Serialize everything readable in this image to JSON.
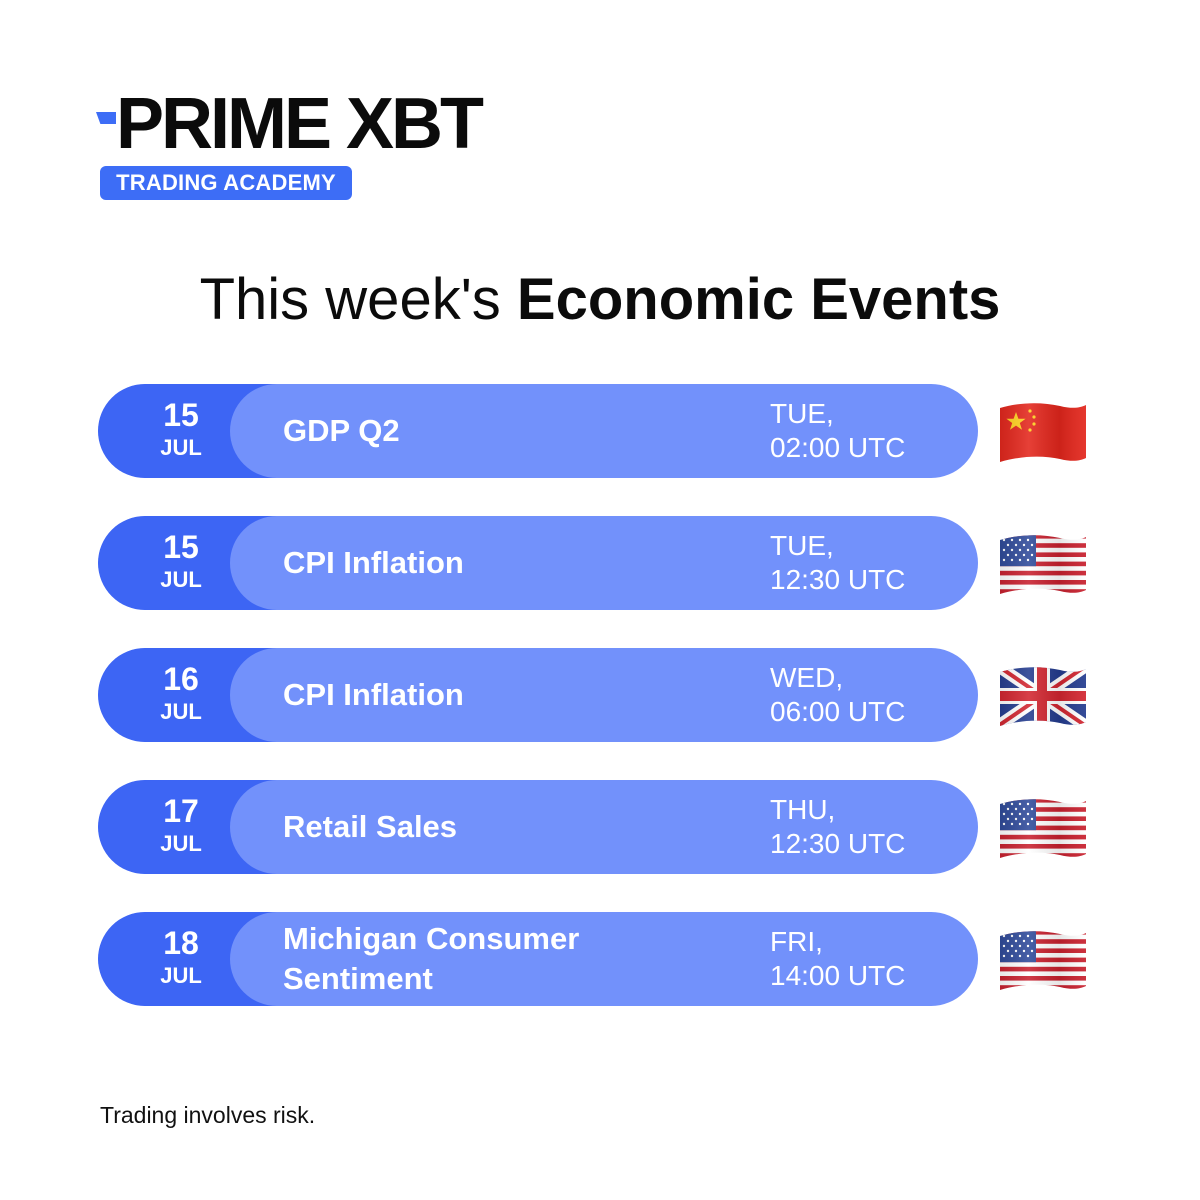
{
  "brand": {
    "name": "PRIME XBT",
    "badge": "TRADING ACADEMY",
    "accent_color": "#3d6df6"
  },
  "heading": {
    "light": "This week's",
    "bold": "Economic Events"
  },
  "events": [
    {
      "day": "15",
      "month": "JUL",
      "name": "GDP Q2",
      "weekday": "TUE,",
      "time": "02:00 UTC",
      "flag": "china-flag-icon"
    },
    {
      "day": "15",
      "month": "JUL",
      "name": "CPI Inflation",
      "weekday": "TUE,",
      "time": "12:30 UTC",
      "flag": "usa-flag-icon"
    },
    {
      "day": "16",
      "month": "JUL",
      "name": "CPI Inflation",
      "weekday": "WED,",
      "time": "06:00 UTC",
      "flag": "uk-flag-icon"
    },
    {
      "day": "17",
      "month": "JUL",
      "name": "Retail Sales",
      "weekday": "THU,",
      "time": "12:30 UTC",
      "flag": "usa-flag-icon"
    },
    {
      "day": "18",
      "month": "JUL",
      "name": "Michigan Consumer Sentiment",
      "weekday": "FRI,",
      "time": "14:00 UTC",
      "flag": "usa-flag-icon"
    }
  ],
  "colors": {
    "date_cap": "#3d65f4",
    "pill": "#7291fb"
  },
  "footer": {
    "disclaimer": "Trading involves risk."
  }
}
